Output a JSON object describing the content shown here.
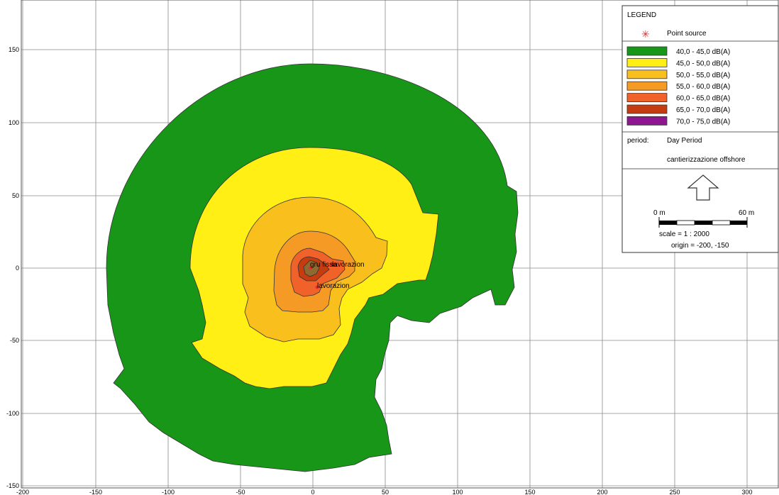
{
  "map": {
    "x_ticks": [
      "-200",
      "-150",
      "-100",
      "-50",
      "0",
      "50",
      "100",
      "150",
      "200",
      "250",
      "300"
    ],
    "y_ticks": [
      "150",
      "100",
      "50",
      "0",
      "-50",
      "-100",
      "-150"
    ],
    "source_labels": [
      "gru fissa",
      "lavorazion",
      "lavorazion"
    ]
  },
  "legend": {
    "title": "LEGEND",
    "point_source_label": "Point source",
    "point_source_color": "#e03030",
    "levels": [
      {
        "label": "40,0 - 45,0 dB(A)",
        "color": "#179618"
      },
      {
        "label": "45,0 - 50,0 dB(A)",
        "color": "#ffef14"
      },
      {
        "label": "50,0 - 55,0 dB(A)",
        "color": "#f8bf1d"
      },
      {
        "label": "55,0 - 60,0 dB(A)",
        "color": "#f59a25"
      },
      {
        "label": "60,0 - 65,0 dB(A)",
        "color": "#f0622a"
      },
      {
        "label": "65,0 - 70,0 dB(A)",
        "color": "#c43c10"
      },
      {
        "label": "70,0 - 75,0 dB(A)",
        "color": "#8e1690"
      }
    ],
    "period_label": "period:",
    "period_value": "Day Period",
    "scenario": "cantierizzazione offshore",
    "north_arrow_icon": "north-arrow-icon",
    "scalebar_start": "0 m",
    "scalebar_end": "60 m",
    "scale": "scale = 1 : 2000",
    "origin": "origin = -200, -150"
  }
}
